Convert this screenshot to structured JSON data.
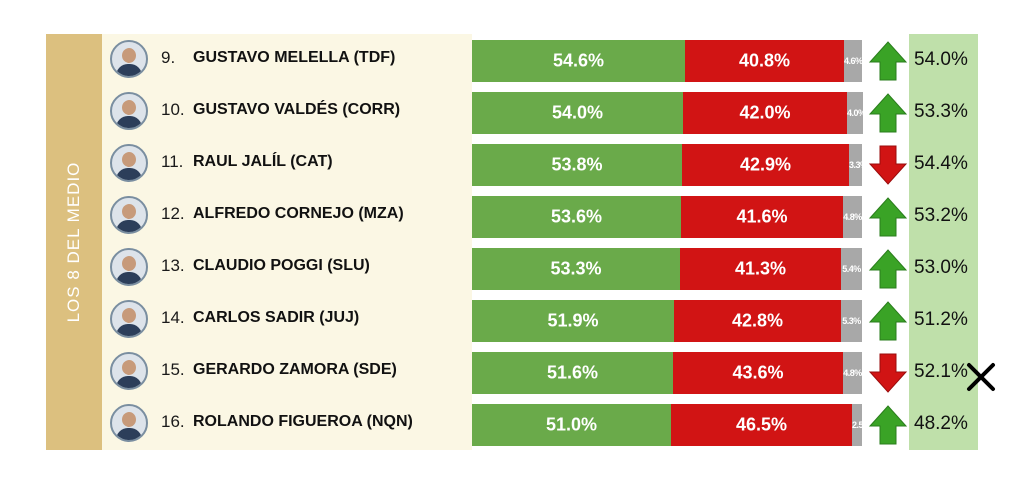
{
  "side_label": "LOS 8 DEL MEDIO",
  "colors": {
    "approve": "#6aaa4a",
    "reject": "#d11414",
    "undecided": "#a8a8a8",
    "arrow_up": "#3aa326",
    "arrow_down": "#d11414",
    "previous_column": "#bfe0aa",
    "side_band": "#dcc07f"
  },
  "chart_data": {
    "type": "table",
    "columns": [
      "rank",
      "name",
      "approve",
      "reject",
      "undecided",
      "trend",
      "previous"
    ],
    "rows": [
      {
        "rank": "9.",
        "name": "GUSTAVO MELELLA (TDF)",
        "approve": 54.6,
        "reject": 40.8,
        "undecided": 4.6,
        "approve_label": "54.6%",
        "reject_label": "40.8%",
        "undecided_label": "4.6%",
        "trend": "up",
        "previous_label": "54.0%"
      },
      {
        "rank": "10.",
        "name": "GUSTAVO VALDÉS (CORR)",
        "approve": 54.0,
        "reject": 42.0,
        "undecided": 4.0,
        "approve_label": "54.0%",
        "reject_label": "42.0%",
        "undecided_label": "4.0%",
        "trend": "up",
        "previous_label": "53.3%"
      },
      {
        "rank": "11.",
        "name": "RAUL JALÍL (CAT)",
        "approve": 53.8,
        "reject": 42.9,
        "undecided": 3.3,
        "approve_label": "53.8%",
        "reject_label": "42.9%",
        "undecided_label": "3.3%",
        "trend": "down",
        "previous_label": "54.4%"
      },
      {
        "rank": "12.",
        "name": "ALFREDO CORNEJO (MZA)",
        "approve": 53.6,
        "reject": 41.6,
        "undecided": 4.8,
        "approve_label": "53.6%",
        "reject_label": "41.6%",
        "undecided_label": "4.8%",
        "trend": "up",
        "previous_label": "53.2%"
      },
      {
        "rank": "13.",
        "name": "CLAUDIO POGGI (SLU)",
        "approve": 53.3,
        "reject": 41.3,
        "undecided": 5.4,
        "approve_label": "53.3%",
        "reject_label": "41.3%",
        "undecided_label": "5.4%",
        "trend": "up",
        "previous_label": "53.0%"
      },
      {
        "rank": "14.",
        "name": "CARLOS SADIR (JUJ)",
        "approve": 51.9,
        "reject": 42.8,
        "undecided": 5.3,
        "approve_label": "51.9%",
        "reject_label": "42.8%",
        "undecided_label": "5.3%",
        "trend": "up",
        "previous_label": "51.2%"
      },
      {
        "rank": "15.",
        "name": "GERARDO ZAMORA (SDE)",
        "approve": 51.6,
        "reject": 43.6,
        "undecided": 4.8,
        "approve_label": "51.6%",
        "reject_label": "43.6%",
        "undecided_label": "4.8%",
        "trend": "down",
        "previous_label": "52.1%"
      },
      {
        "rank": "16.",
        "name": "ROLANDO FIGUEROA (NQN)",
        "approve": 51.0,
        "reject": 46.5,
        "undecided": 2.5,
        "approve_label": "51.0%",
        "reject_label": "46.5%",
        "undecided_label": "2.5",
        "trend": "up",
        "previous_label": "48.2%"
      }
    ]
  }
}
